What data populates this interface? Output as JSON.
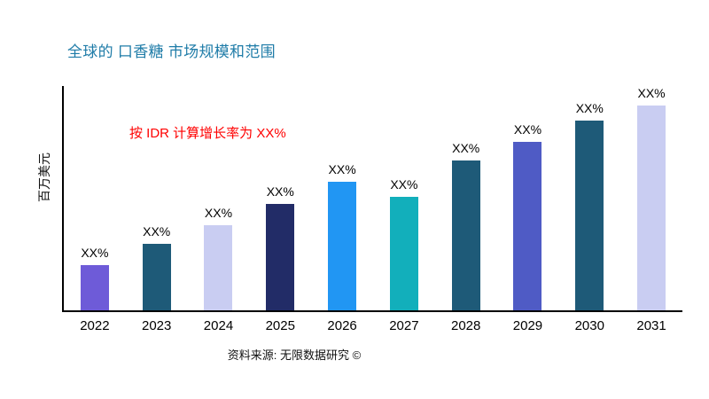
{
  "title": "全球的 口香糖 市场规模和范围",
  "ylabel": "百万美元",
  "annotation": "按 IDR 计算增长率为 XX%",
  "source": "资料来源: 无限数据研究 ©",
  "colors": {
    "title": "#1F7CA8",
    "annotation": "#FF0000",
    "axis": "#000000",
    "background": "#FFFFFF"
  },
  "chart_data": {
    "type": "bar",
    "title": "全球的 口香糖 市场规模和范围",
    "xlabel": "",
    "ylabel": "百万美元",
    "categories": [
      "2022",
      "2023",
      "2024",
      "2025",
      "2026",
      "2027",
      "2028",
      "2029",
      "2030",
      "2031"
    ],
    "values": [
      21,
      31,
      40,
      50,
      60,
      53,
      70,
      79,
      89,
      100
    ],
    "bar_labels": [
      "XX%",
      "XX%",
      "XX%",
      "XX%",
      "XX%",
      "XX%",
      "XX%",
      "XX%",
      "XX%",
      "XX%"
    ],
    "bar_colors": [
      "#6E5BD8",
      "#1E5A78",
      "#C9CDF2",
      "#222C67",
      "#2196F3",
      "#12AFBB",
      "#1E5A78",
      "#4F5BC5",
      "#1E5A78",
      "#C9CDF2"
    ],
    "ylim": [
      0,
      105
    ],
    "grid": false,
    "legend": "none",
    "annotation": "按 IDR 计算增长率为 XX%"
  }
}
